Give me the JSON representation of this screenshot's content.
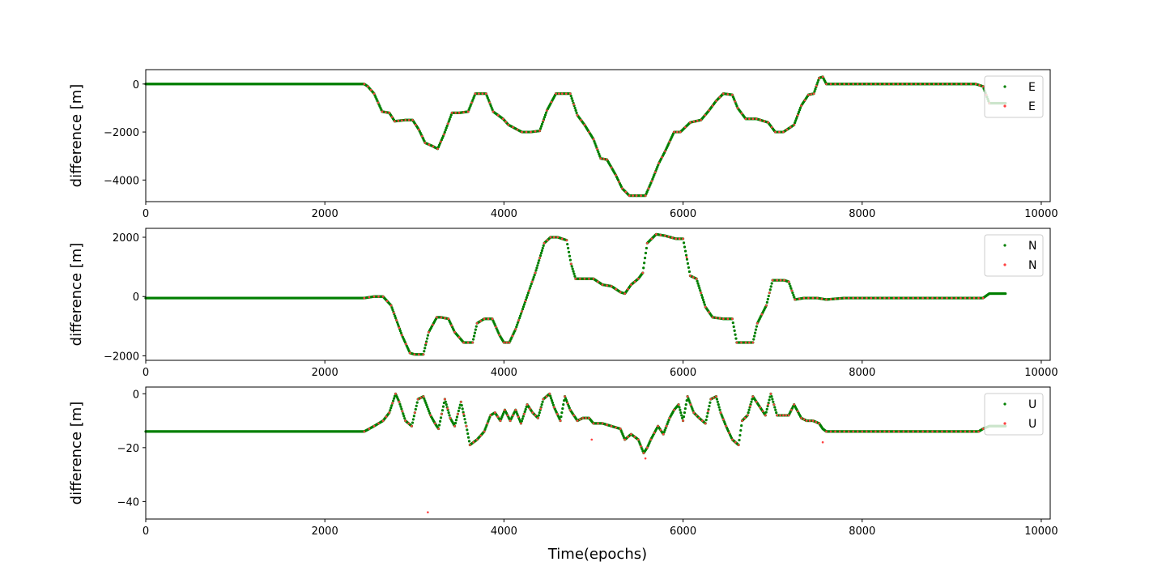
{
  "figure": {
    "xlabel": "Time(epochs)"
  },
  "colors": {
    "green": "#007f00",
    "red": "#ff4040",
    "axis": "#000000",
    "background": "#ffffff"
  },
  "chart_data": [
    {
      "type": "scatter",
      "ylabel": "difference [m]",
      "xlim": [
        0,
        10100
      ],
      "ylim": [
        -4900,
        600
      ],
      "xticks": [
        0,
        2000,
        4000,
        6000,
        8000,
        10000
      ],
      "xtick_labels": [
        "0",
        "2000",
        "4000",
        "6000",
        "8000",
        "10000"
      ],
      "yticks": [
        0,
        -2000,
        -4000
      ],
      "ytick_labels": [
        "0",
        "−2000",
        "−4000"
      ],
      "legend_position": "upper-right",
      "series": [
        {
          "name": "E",
          "color": "#007f00",
          "x": [
            0,
            2440,
            2480,
            2550,
            2640,
            2720,
            2780,
            2900,
            2980,
            3050,
            3120,
            3210,
            3260,
            3330,
            3420,
            3500,
            3600,
            3680,
            3800,
            3880,
            3990,
            4050,
            4200,
            4300,
            4400,
            4480,
            4580,
            4650,
            4740,
            4820,
            4900,
            5000,
            5080,
            5150,
            5250,
            5320,
            5400,
            5480,
            5580,
            5650,
            5730,
            5800,
            5900,
            5970,
            6080,
            6200,
            6290,
            6370,
            6450,
            6550,
            6610,
            6700,
            6820,
            6950,
            7030,
            7120,
            7240,
            7320,
            7400,
            7460,
            7520,
            7560,
            7600,
            7700,
            8000,
            8500,
            9000,
            9270,
            9350,
            9420,
            9600
          ],
          "values": [
            0,
            0,
            -100,
            -400,
            -1150,
            -1200,
            -1550,
            -1500,
            -1500,
            -1900,
            -2450,
            -2600,
            -2700,
            -2100,
            -1200,
            -1200,
            -1150,
            -400,
            -400,
            -1150,
            -1450,
            -1700,
            -2000,
            -2000,
            -1950,
            -1100,
            -400,
            -400,
            -400,
            -1300,
            -1700,
            -2300,
            -3100,
            -3150,
            -3800,
            -4350,
            -4650,
            -4650,
            -4650,
            -4050,
            -3300,
            -2800,
            -2000,
            -2000,
            -1600,
            -1500,
            -1100,
            -700,
            -400,
            -450,
            -1000,
            -1450,
            -1450,
            -1600,
            -2000,
            -2000,
            -1700,
            -900,
            -450,
            -400,
            250,
            300,
            0,
            0,
            0,
            0,
            0,
            0,
            -100,
            -800,
            -800
          ]
        },
        {
          "name": "E",
          "color": "#ff4040",
          "x": [
            2440,
            2480,
            2550,
            2640,
            2720,
            2780,
            2900,
            2980,
            3050,
            3120,
            3210,
            3260,
            3330,
            3420,
            3500,
            3600,
            3680,
            3800,
            3880,
            3990,
            4050,
            4200,
            4300,
            4400,
            4480,
            4580,
            4650,
            4740,
            4820,
            4900,
            5000,
            5080,
            5150,
            5250,
            5320,
            5400,
            5480,
            5580,
            5650,
            5730,
            5800,
            5900,
            5970,
            6080,
            6200,
            6290,
            6370,
            6450,
            6550,
            6610,
            6700,
            6820,
            6950,
            7030,
            7120,
            7240,
            7320,
            7400,
            7460,
            7520,
            7560,
            7600,
            7700,
            7850,
            8000,
            8300,
            8500,
            9000,
            9270,
            9350,
            9420
          ],
          "values": [
            0,
            -100,
            -400,
            -1150,
            -1200,
            -1550,
            -1500,
            -1500,
            -1900,
            -2450,
            -2600,
            -2700,
            -2100,
            -1200,
            -1200,
            -1150,
            -400,
            -400,
            -1150,
            -1450,
            -1700,
            -2000,
            -2000,
            -1950,
            -1100,
            -400,
            -400,
            -400,
            -1300,
            -1700,
            -2300,
            -3100,
            -3150,
            -3800,
            -4350,
            -4650,
            -4650,
            -4650,
            -4050,
            -3300,
            -2800,
            -2000,
            -2000,
            -1600,
            -1500,
            -1100,
            -700,
            -400,
            -450,
            -1000,
            -1450,
            -1450,
            -1600,
            -2000,
            -2000,
            -1700,
            -900,
            -450,
            -400,
            250,
            300,
            0,
            0,
            0,
            0,
            0,
            0,
            0,
            0,
            -100,
            -800
          ]
        }
      ]
    },
    {
      "type": "scatter",
      "ylabel": "difference [m]",
      "xlim": [
        0,
        10100
      ],
      "ylim": [
        -2150,
        2300
      ],
      "xticks": [
        0,
        2000,
        4000,
        6000,
        8000,
        10000
      ],
      "xtick_labels": [
        "0",
        "2000",
        "4000",
        "6000",
        "8000",
        "10000"
      ],
      "yticks": [
        2000,
        0,
        -2000
      ],
      "ytick_labels": [
        "2000",
        "0",
        "−2000"
      ],
      "legend_position": "upper-right",
      "series": [
        {
          "name": "N",
          "color": "#007f00",
          "x": [
            0,
            2440,
            2550,
            2650,
            2740,
            2800,
            2860,
            2950,
            3000,
            3100,
            3160,
            3250,
            3300,
            3380,
            3450,
            3550,
            3650,
            3700,
            3780,
            3870,
            3950,
            4000,
            4060,
            4130,
            4200,
            4280,
            4350,
            4450,
            4520,
            4600,
            4700,
            4750,
            4800,
            4900,
            5000,
            5100,
            5200,
            5300,
            5350,
            5420,
            5500,
            5550,
            5600,
            5700,
            5800,
            5920,
            6000,
            6080,
            6150,
            6250,
            6330,
            6450,
            6550,
            6600,
            6700,
            6780,
            6830,
            6930,
            7000,
            7050,
            7130,
            7180,
            7250,
            7350,
            7500,
            7600,
            7800,
            8000,
            9000,
            9300,
            9350,
            9420,
            9600
          ],
          "values": [
            -50,
            -50,
            0,
            0,
            -300,
            -800,
            -1300,
            -1900,
            -1950,
            -1950,
            -1200,
            -700,
            -700,
            -750,
            -1200,
            -1550,
            -1550,
            -900,
            -750,
            -750,
            -1300,
            -1550,
            -1550,
            -1100,
            -500,
            200,
            800,
            1800,
            2000,
            2000,
            1900,
            1100,
            600,
            600,
            600,
            400,
            350,
            150,
            100,
            400,
            600,
            800,
            1800,
            2100,
            2050,
            1950,
            1950,
            700,
            600,
            -350,
            -700,
            -750,
            -750,
            -1550,
            -1550,
            -1550,
            -900,
            -300,
            550,
            550,
            550,
            500,
            -100,
            -50,
            -50,
            -100,
            -50,
            -50,
            -50,
            -50,
            -50,
            100,
            100
          ]
        },
        {
          "name": "N",
          "color": "#ff4040",
          "x": [
            2440,
            2550,
            2650,
            2740,
            2800,
            2860,
            2950,
            3000,
            3100,
            3160,
            3250,
            3300,
            3380,
            3450,
            3550,
            3650,
            3700,
            3780,
            3870,
            3950,
            4000,
            4060,
            4130,
            4200,
            4280,
            4350,
            4450,
            4520,
            4600,
            4700,
            4750,
            4800,
            4900,
            5000,
            5100,
            5200,
            5300,
            5350,
            5420,
            5500,
            5550,
            5600,
            5700,
            5800,
            5920,
            6000,
            6080,
            6150,
            6250,
            6330,
            6450,
            6550,
            6600,
            6700,
            6780,
            6830,
            6930,
            7000,
            7050,
            7130,
            7180,
            7250,
            7350,
            7500,
            7600,
            7800,
            8000,
            8300,
            9000,
            9300,
            9350
          ],
          "values": [
            -50,
            0,
            0,
            -300,
            -800,
            -1300,
            -1900,
            -1950,
            -1950,
            -1200,
            -700,
            -700,
            -750,
            -1200,
            -1550,
            -1550,
            -900,
            -750,
            -750,
            -1300,
            -1550,
            -1550,
            -1100,
            -500,
            200,
            800,
            1800,
            2000,
            2000,
            1900,
            1100,
            600,
            600,
            600,
            400,
            350,
            150,
            100,
            400,
            600,
            800,
            1800,
            2100,
            2050,
            1950,
            1950,
            700,
            600,
            -350,
            -700,
            -750,
            -750,
            -1550,
            -1550,
            -1550,
            -900,
            -300,
            550,
            550,
            550,
            500,
            -100,
            -50,
            -50,
            -100,
            -50,
            -50,
            -50,
            -50,
            -50,
            -50
          ]
        }
      ]
    },
    {
      "type": "scatter",
      "ylabel": "difference [m]",
      "xlim": [
        0,
        10100
      ],
      "ylim": [
        -46.5,
        2.5
      ],
      "xticks": [
        0,
        2000,
        4000,
        6000,
        8000,
        10000
      ],
      "xtick_labels": [
        "0",
        "2000",
        "4000",
        "6000",
        "8000",
        "10000"
      ],
      "yticks": [
        0,
        -20,
        -40
      ],
      "ytick_labels": [
        "0",
        "−20",
        "−40"
      ],
      "legend_position": "upper-right",
      "series": [
        {
          "name": "U",
          "color": "#007f00",
          "x": [
            0,
            2440,
            2550,
            2650,
            2720,
            2790,
            2830,
            2900,
            2970,
            3040,
            3100,
            3180,
            3230,
            3270,
            3340,
            3400,
            3450,
            3520,
            3580,
            3620,
            3700,
            3780,
            3850,
            3900,
            3960,
            4010,
            4070,
            4130,
            4190,
            4260,
            4320,
            4380,
            4440,
            4510,
            4560,
            4630,
            4680,
            4740,
            4820,
            4880,
            4950,
            5000,
            5100,
            5200,
            5300,
            5350,
            5420,
            5500,
            5560,
            5600,
            5640,
            5720,
            5780,
            5850,
            5900,
            5950,
            6000,
            6050,
            6120,
            6180,
            6250,
            6310,
            6370,
            6420,
            6480,
            6550,
            6620,
            6660,
            6720,
            6780,
            6860,
            6920,
            6980,
            7050,
            7120,
            7180,
            7240,
            7320,
            7380,
            7450,
            7520,
            7560,
            7600,
            7700,
            7900,
            8500,
            9000,
            9300,
            9350,
            9420,
            9600
          ],
          "values": [
            -14,
            -14,
            -12,
            -10,
            -7,
            0,
            -3,
            -10,
            -12,
            -2,
            -1,
            -8,
            -11,
            -13,
            -2,
            -9,
            -12,
            -3,
            -12,
            -19,
            -17,
            -14,
            -8,
            -7,
            -10,
            -6,
            -10,
            -6,
            -11,
            -4,
            -7,
            -9,
            -2,
            0,
            -5,
            -10,
            -1,
            -6,
            -10,
            -9,
            -9,
            -11,
            -11,
            -12,
            -13,
            -17,
            -15,
            -17,
            -22,
            -20,
            -17,
            -12,
            -15,
            -9,
            -6,
            -4,
            -10,
            -1,
            -7,
            -9,
            -11,
            -2,
            -1,
            -7,
            -12,
            -17,
            -19,
            -10,
            -8,
            -1,
            -5,
            -8,
            0,
            -8,
            -8,
            -8,
            -4,
            -9,
            -10,
            -10,
            -11,
            -13,
            -14,
            -14,
            -14,
            -14,
            -14,
            -14,
            -13,
            -12,
            -12
          ]
        },
        {
          "name": "U",
          "color": "#ff4040",
          "x": [
            2440,
            2550,
            2650,
            2720,
            2790,
            2830,
            2900,
            2970,
            3040,
            3100,
            3150,
            3180,
            3230,
            3270,
            3340,
            3400,
            3450,
            3520,
            3580,
            3620,
            3700,
            3780,
            3850,
            3900,
            3960,
            4010,
            4070,
            4130,
            4190,
            4260,
            4320,
            4380,
            4440,
            4510,
            4560,
            4630,
            4680,
            4740,
            4820,
            4880,
            4950,
            4980,
            5000,
            5100,
            5200,
            5300,
            5350,
            5420,
            5500,
            5560,
            5580,
            5600,
            5640,
            5720,
            5780,
            5850,
            5900,
            5950,
            6000,
            6050,
            6120,
            6180,
            6250,
            6310,
            6370,
            6420,
            6480,
            6550,
            6620,
            6660,
            6720,
            6780,
            6860,
            6920,
            6980,
            7050,
            7120,
            7180,
            7240,
            7320,
            7380,
            7450,
            7520,
            7560,
            7600,
            7700,
            7900,
            8300,
            9000,
            9300,
            9350
          ],
          "values": [
            -14,
            -12,
            -10,
            -7,
            0,
            -3,
            -10,
            -12,
            -2,
            -1,
            -44,
            -8,
            -11,
            -13,
            -2,
            -9,
            -12,
            -3,
            -12,
            -19,
            -17,
            -14,
            -8,
            -7,
            -10,
            -6,
            -10,
            -6,
            -11,
            -4,
            -7,
            -9,
            -2,
            0,
            -5,
            -10,
            -1,
            -6,
            -10,
            -9,
            -9,
            -17,
            -11,
            -11,
            -12,
            -13,
            -17,
            -15,
            -17,
            -22,
            -24,
            -20,
            -17,
            -12,
            -15,
            -9,
            -6,
            -4,
            -10,
            -1,
            -7,
            -9,
            -11,
            -2,
            -1,
            -7,
            -12,
            -17,
            -19,
            -10,
            -8,
            -1,
            -5,
            -8,
            0,
            -8,
            -8,
            -8,
            -4,
            -9,
            -10,
            -10,
            -11,
            -18,
            -14,
            -14,
            -14,
            -14,
            -14,
            -14,
            -13
          ]
        }
      ]
    }
  ]
}
